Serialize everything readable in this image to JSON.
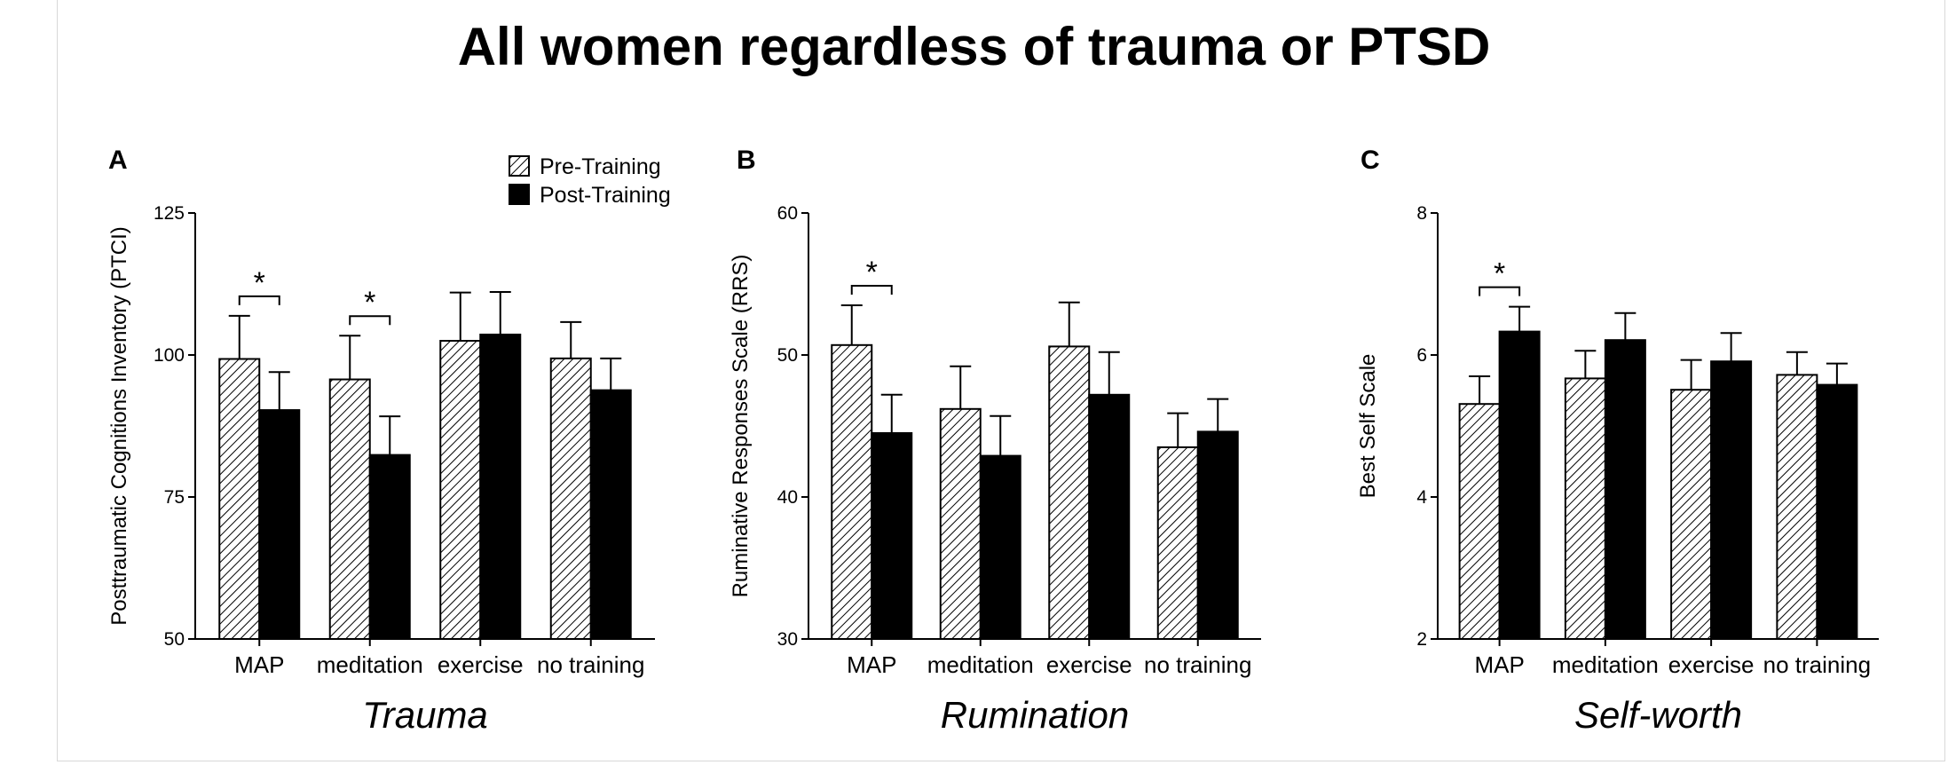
{
  "title": "All women regardless of trauma or PTSD",
  "colors": {
    "pre": "#ffffff",
    "post": "#000000",
    "hatch": "#000000"
  },
  "legend": [
    {
      "label": "Pre-Training",
      "pattern": "hatched"
    },
    {
      "label": "Post-Training",
      "pattern": "solid"
    }
  ],
  "chart_data": [
    {
      "type": "bar",
      "panel": "A",
      "subtitle": "Trauma",
      "ylabel": "Posttraumatic Cognitions Inventory (PTCI)",
      "ylim": [
        50,
        125
      ],
      "yticks": [
        50,
        75,
        100,
        125
      ],
      "categories": [
        "MAP",
        "meditation",
        "exercise",
        "no training"
      ],
      "series": [
        {
          "name": "Pre-Training",
          "values": [
            99.3,
            95.7,
            102.5,
            99.4
          ],
          "errors": [
            7.6,
            7.7,
            8.5,
            6.4
          ]
        },
        {
          "name": "Post-Training",
          "values": [
            90.3,
            82.4,
            103.6,
            93.8
          ],
          "errors": [
            6.7,
            6.8,
            7.5,
            5.6
          ]
        }
      ],
      "significance": [
        {
          "category": "MAP",
          "label": "*"
        },
        {
          "category": "meditation",
          "label": "*"
        }
      ]
    },
    {
      "type": "bar",
      "panel": "B",
      "subtitle": "Rumination",
      "ylabel": "Ruminative Responses Scale (RRS)",
      "ylim": [
        30,
        60
      ],
      "yticks": [
        30,
        40,
        50,
        60
      ],
      "categories": [
        "MAP",
        "meditation",
        "exercise",
        "no training"
      ],
      "series": [
        {
          "name": "Pre-Training",
          "values": [
            50.7,
            46.2,
            50.6,
            43.5
          ],
          "errors": [
            2.8,
            3.0,
            3.1,
            2.4
          ]
        },
        {
          "name": "Post-Training",
          "values": [
            44.5,
            42.9,
            47.2,
            44.6
          ],
          "errors": [
            2.7,
            2.8,
            3.0,
            2.3
          ]
        }
      ],
      "significance": [
        {
          "category": "MAP",
          "label": "*"
        }
      ]
    },
    {
      "type": "bar",
      "panel": "C",
      "subtitle": "Self-worth",
      "ylabel": "Best Self Scale",
      "ylim": [
        2,
        8
      ],
      "yticks": [
        2,
        4,
        6,
        8
      ],
      "categories": [
        "MAP",
        "meditation",
        "exercise",
        "no training"
      ],
      "series": [
        {
          "name": "Pre-Training",
          "values": [
            5.31,
            5.67,
            5.51,
            5.72
          ],
          "errors": [
            0.39,
            0.39,
            0.42,
            0.32
          ]
        },
        {
          "name": "Post-Training",
          "values": [
            6.33,
            6.21,
            5.91,
            5.58
          ],
          "errors": [
            0.35,
            0.38,
            0.4,
            0.3
          ]
        }
      ],
      "significance": [
        {
          "category": "MAP",
          "label": "*"
        }
      ]
    }
  ]
}
